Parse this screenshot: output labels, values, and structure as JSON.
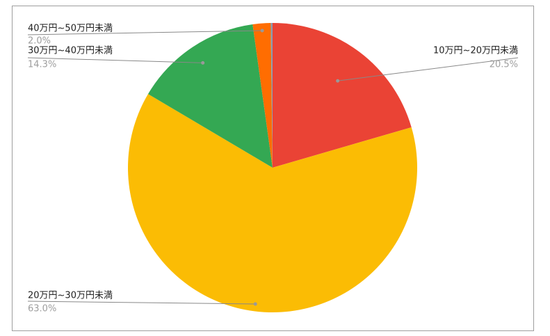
{
  "chart_data": {
    "type": "pie",
    "categories": [
      "10万円~20万円未満",
      "20万円~30万円未満",
      "30万円~40万円未満",
      "40万円~50万円未満",
      null
    ],
    "values": [
      20.5,
      63.0,
      14.3,
      2.0,
      0.2
    ],
    "value_labels": [
      "20.5%",
      "63.0%",
      "14.3%",
      "2.0%",
      null
    ],
    "colors": [
      "#ea4335",
      "#fbbc04",
      "#34a853",
      "#ff6d01",
      "#8a9bb0"
    ]
  }
}
